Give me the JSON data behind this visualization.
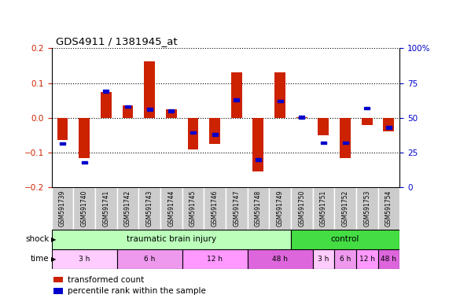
{
  "title": "GDS4911 / 1381945_at",
  "samples": [
    "GSM591739",
    "GSM591740",
    "GSM591741",
    "GSM591742",
    "GSM591743",
    "GSM591744",
    "GSM591745",
    "GSM591746",
    "GSM591747",
    "GSM591748",
    "GSM591749",
    "GSM591750",
    "GSM591751",
    "GSM591752",
    "GSM591753",
    "GSM591754"
  ],
  "red_bars": [
    -0.065,
    -0.115,
    0.075,
    0.035,
    0.163,
    0.025,
    -0.092,
    -0.075,
    0.13,
    -0.155,
    0.13,
    0.002,
    -0.05,
    -0.115,
    -0.02,
    -0.04
  ],
  "blue_squares": [
    0.315,
    0.18,
    0.69,
    0.58,
    0.56,
    0.55,
    0.395,
    0.38,
    0.63,
    0.2,
    0.62,
    0.505,
    0.32,
    0.32,
    0.57,
    0.43
  ],
  "ylim": [
    -0.2,
    0.2
  ],
  "yticks_left": [
    -0.2,
    -0.1,
    0.0,
    0.1,
    0.2
  ],
  "yticks_right": [
    0,
    25,
    50,
    75,
    100
  ],
  "shock_groups": [
    {
      "label": "traumatic brain injury",
      "start": 0,
      "end": 11,
      "color": "#bbffbb"
    },
    {
      "label": "control",
      "start": 11,
      "end": 16,
      "color": "#44dd44"
    }
  ],
  "time_groups": [
    {
      "label": "3 h",
      "start": 0,
      "end": 3,
      "color": "#ffccff"
    },
    {
      "label": "6 h",
      "start": 3,
      "end": 6,
      "color": "#ee99ee"
    },
    {
      "label": "12 h",
      "start": 6,
      "end": 9,
      "color": "#ff99ff"
    },
    {
      "label": "48 h",
      "start": 9,
      "end": 12,
      "color": "#dd66dd"
    },
    {
      "label": "3 h",
      "start": 12,
      "end": 13,
      "color": "#ffccff"
    },
    {
      "label": "6 h",
      "start": 13,
      "end": 14,
      "color": "#ee99ee"
    },
    {
      "label": "12 h",
      "start": 14,
      "end": 15,
      "color": "#ff99ff"
    },
    {
      "label": "48 h",
      "start": 15,
      "end": 16,
      "color": "#dd66dd"
    }
  ],
  "bar_color": "#cc2200",
  "square_color": "#0000cc",
  "background_color": "#ffffff",
  "grid_color": "#000000",
  "ylabel_left_color": "#cc2200",
  "ylabel_right_color": "#0000cc",
  "label_bg_color": "#cccccc",
  "label_border_color": "#ffffff"
}
